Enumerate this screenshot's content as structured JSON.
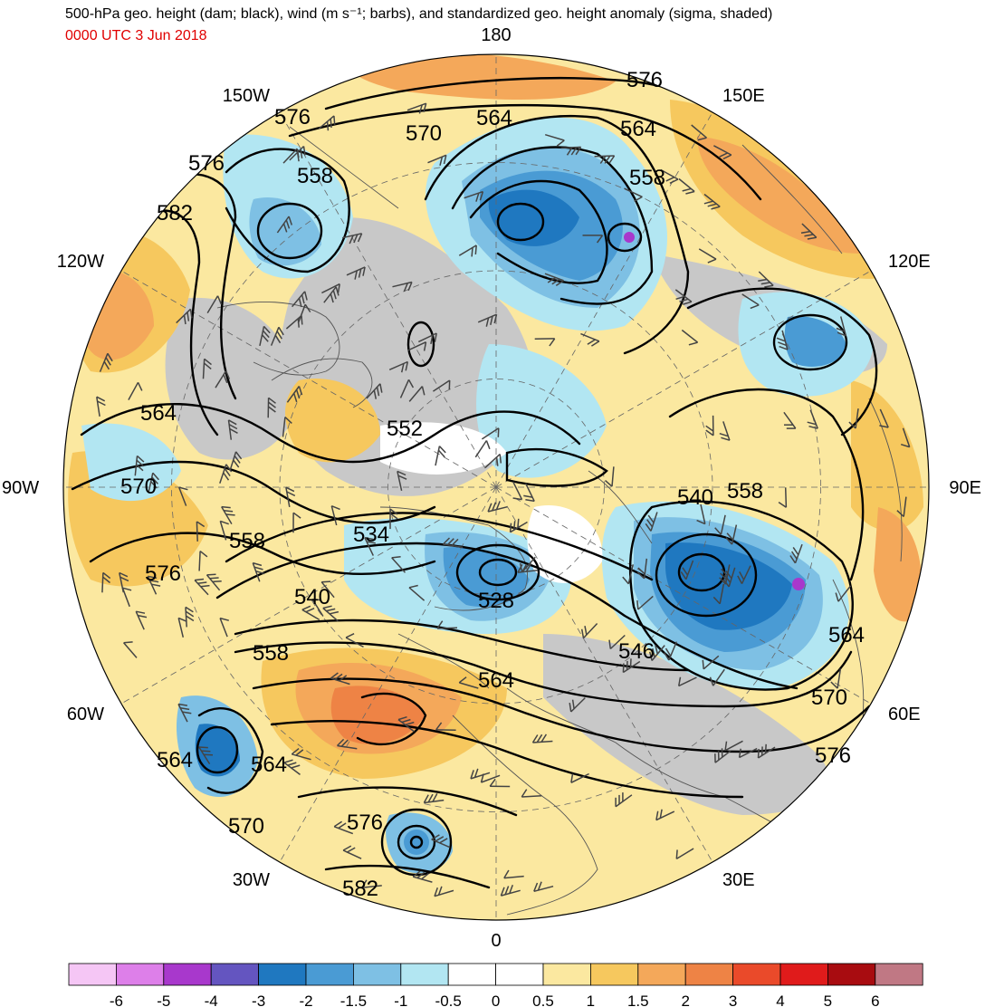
{
  "header": {
    "title": "500-hPa geo. height (dam; black), wind (m s⁻¹; barbs), and standardized geo. height anomaly (sigma, shaded)",
    "valid_time": "0000 UTC 3 Jun 2018"
  },
  "map": {
    "projection": "north polar stereographic",
    "longitude_labels": [
      {
        "name": "lon-180",
        "text": "180",
        "lon": 180
      },
      {
        "name": "lon-150e",
        "text": "150E",
        "lon": 150
      },
      {
        "name": "lon-120e",
        "text": "120E",
        "lon": 120
      },
      {
        "name": "lon-90e",
        "text": "90E",
        "lon": 90
      },
      {
        "name": "lon-60e",
        "text": "60E",
        "lon": 60
      },
      {
        "name": "lon-30e",
        "text": "30E",
        "lon": 30
      },
      {
        "name": "lon-0",
        "text": "0",
        "lon": 0
      },
      {
        "name": "lon-30w",
        "text": "30W",
        "lon": -30
      },
      {
        "name": "lon-60w",
        "text": "60W",
        "lon": -60
      },
      {
        "name": "lon-90w",
        "text": "90W",
        "lon": -90
      },
      {
        "name": "lon-120w",
        "text": "120W",
        "lon": -120
      },
      {
        "name": "lon-150w",
        "text": "150W",
        "lon": -150
      }
    ],
    "contour_labels": [
      "576",
      "576",
      "564",
      "564",
      "570",
      "558",
      "558",
      "576",
      "582",
      "564",
      "552",
      "570",
      "540",
      "558",
      "558",
      "534",
      "576",
      "540",
      "528",
      "546",
      "564",
      "564",
      "558",
      "570",
      "576",
      "564",
      "564",
      "570",
      "576",
      "582"
    ]
  },
  "legend": {
    "title": "",
    "bins": [
      {
        "label": "-6",
        "color": "#f5c6f5"
      },
      {
        "label": "-5",
        "color": "#dd7fe9"
      },
      {
        "label": "-4",
        "color": "#a838cc"
      },
      {
        "label": "-3",
        "color": "#6455c0"
      },
      {
        "label": "-2",
        "color": "#1f78c0"
      },
      {
        "label": "-1.5",
        "color": "#4a9bd4"
      },
      {
        "label": "-1",
        "color": "#7ec0e4"
      },
      {
        "label": "-0.5",
        "color": "#b2e6f2"
      },
      {
        "label": "0",
        "color": "#ffffff"
      },
      {
        "label": "0.5",
        "color": "#ffffff"
      },
      {
        "label": "1",
        "color": "#fbe8a0"
      },
      {
        "label": "1.5",
        "color": "#f6c85e"
      },
      {
        "label": "2",
        "color": "#f4a85a"
      },
      {
        "label": "3",
        "color": "#ee8345"
      },
      {
        "label": "4",
        "color": "#ea4a2a"
      },
      {
        "label": "5",
        "color": "#e01b1b"
      },
      {
        "label": "6",
        "color": "#a80c10"
      }
    ],
    "extra_color": "#c07884"
  }
}
